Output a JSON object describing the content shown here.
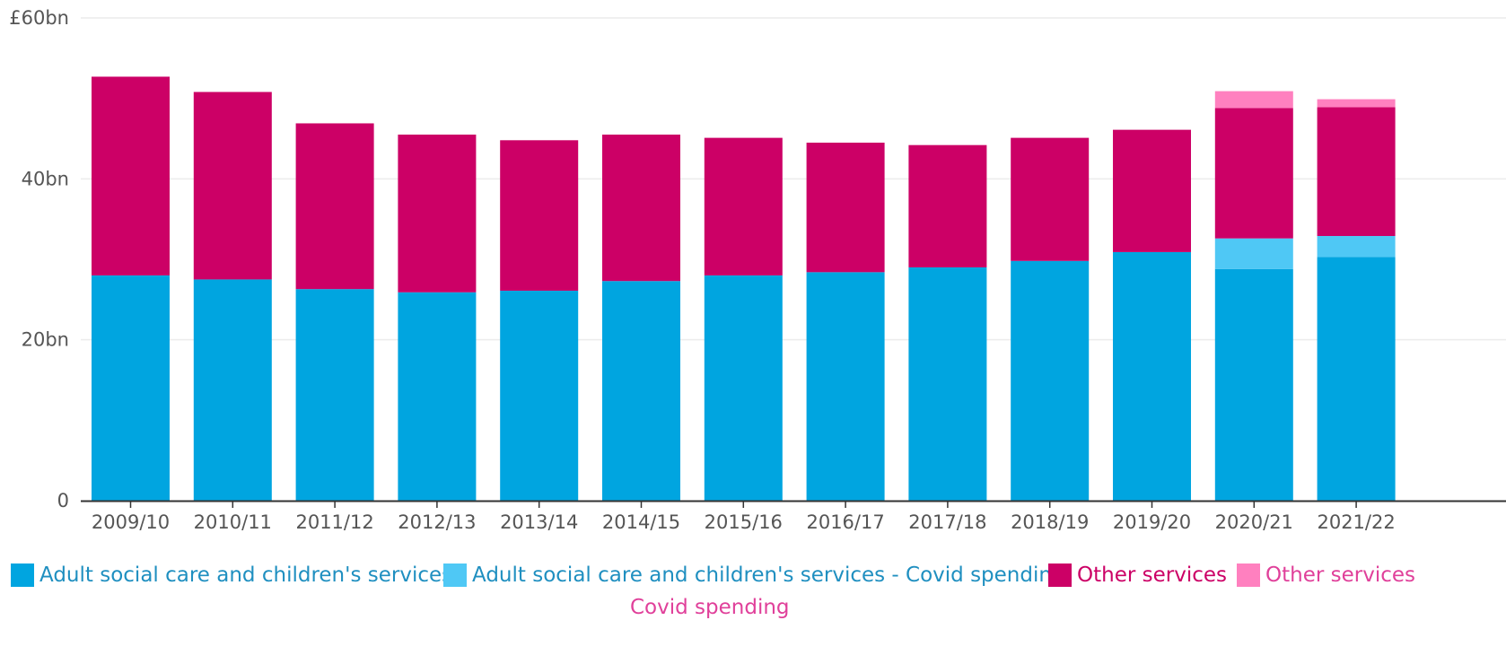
{
  "chart_data": {
    "type": "bar",
    "stacked": true,
    "categories": [
      "2009/10",
      "2010/11",
      "2011/12",
      "2012/13",
      "2013/14",
      "2014/15",
      "2015/16",
      "2016/17",
      "2017/18",
      "2018/19",
      "2019/20",
      "2020/21",
      "2021/22"
    ],
    "series": [
      {
        "name": "Adult social care and children's services",
        "color": "#00a5e0",
        "values": [
          28.0,
          27.5,
          26.3,
          25.9,
          26.1,
          27.3,
          28.0,
          28.4,
          29.0,
          29.8,
          30.9,
          28.8,
          30.3
        ]
      },
      {
        "name": "Adult social care and children's services - Covid spending",
        "color": "#4fc8f5",
        "values": [
          0,
          0,
          0,
          0,
          0,
          0,
          0,
          0,
          0,
          0,
          0,
          3.8,
          2.6
        ]
      },
      {
        "name": "Other services",
        "color": "#cc0066",
        "values": [
          24.7,
          23.3,
          20.6,
          19.6,
          18.7,
          18.2,
          17.1,
          16.1,
          15.2,
          15.3,
          15.2,
          16.2,
          16.0
        ]
      },
      {
        "name": "Other services",
        "name_continued": "Covid spending",
        "color": "#ff80bf",
        "values": [
          0,
          0,
          0,
          0,
          0,
          0,
          0,
          0,
          0,
          0,
          0,
          2.1,
          1.0
        ]
      }
    ],
    "yticks": [
      {
        "value": 0,
        "label": "0"
      },
      {
        "value": 20,
        "label": "20bn"
      },
      {
        "value": 40,
        "label": "40bn"
      },
      {
        "value": 60,
        "label": "£60bn"
      }
    ],
    "ylim": [
      0,
      60
    ],
    "grid": true,
    "legend_position": "bottom",
    "title": "",
    "xlabel": "",
    "ylabel": ""
  }
}
